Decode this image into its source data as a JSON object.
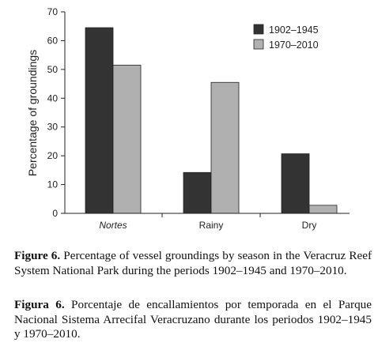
{
  "chart_data": {
    "type": "bar",
    "categories": [
      "Nortes",
      "Rainy",
      "Dry"
    ],
    "series": [
      {
        "name": "1902–1945",
        "values": [
          64.5,
          14.2,
          20.7
        ],
        "color": "#333333"
      },
      {
        "name": "1970–2010",
        "values": [
          51.5,
          45.5,
          2.8
        ],
        "color": "#b0b0b0"
      }
    ],
    "title": "",
    "xlabel": "",
    "ylabel": "Percentage of groundings",
    "ylim": [
      0,
      70
    ],
    "yticks": [
      0,
      10,
      20,
      30,
      40,
      50,
      60,
      70
    ],
    "grid": false,
    "legend_position": "top-right"
  },
  "caption": {
    "en_label": "Figure 6.",
    "en_text": "Percentage of vessel groundings by season in the Veracruz Reef System National Park during the periods 1902–1945 and 1970–2010.",
    "es_label": "Figura 6.",
    "es_text": "Porcentaje de encallamientos por temporada en el Parque Nacional Sistema Arrecifal Veracruzano durante los periodos 1902–1945 y 1970–2010."
  }
}
